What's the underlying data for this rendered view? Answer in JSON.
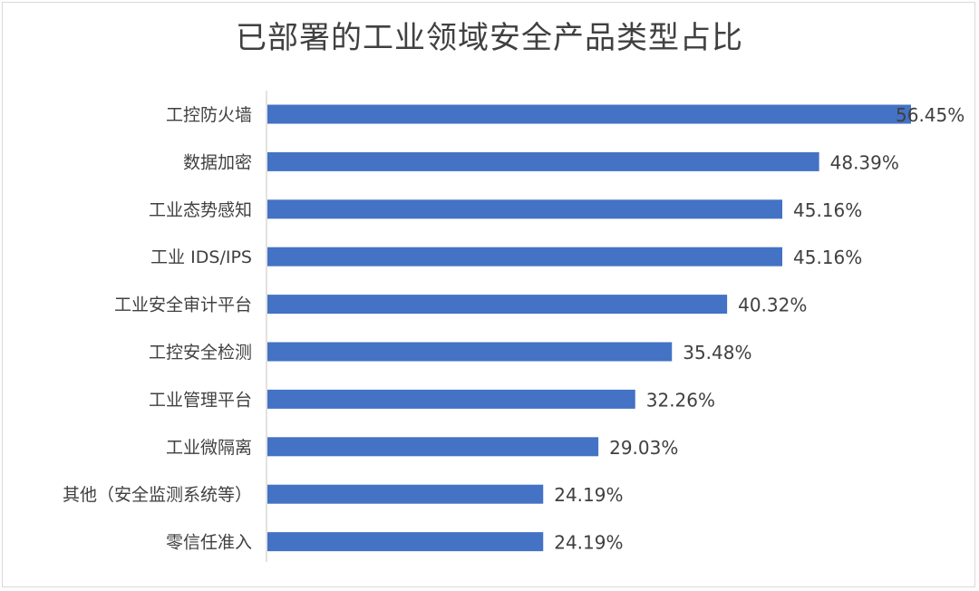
{
  "chart_data": {
    "type": "bar",
    "orientation": "horizontal",
    "title": "已部署的工业领域安全产品类型占比",
    "categories": [
      "工控防火墙",
      "数据加密",
      "工业态势感知",
      "工业 IDS/IPS",
      "工业安全审计平台",
      "工控安全检测",
      "工业管理平台",
      "工业微隔离",
      "其他（安全监测系统等）",
      "零信任准入"
    ],
    "values": [
      56.45,
      48.39,
      45.16,
      45.16,
      40.32,
      35.48,
      32.26,
      29.03,
      24.19,
      24.19
    ],
    "value_labels": [
      "56.45%",
      "48.39%",
      "45.16%",
      "45.16%",
      "40.32%",
      "35.48%",
      "32.26%",
      "29.03%",
      "24.19%",
      "24.19%"
    ],
    "xlim": [
      0,
      56.45
    ],
    "grid": false,
    "legend": "none",
    "bar_color": "#4472c4",
    "axis_color": "#d9d9d9"
  }
}
